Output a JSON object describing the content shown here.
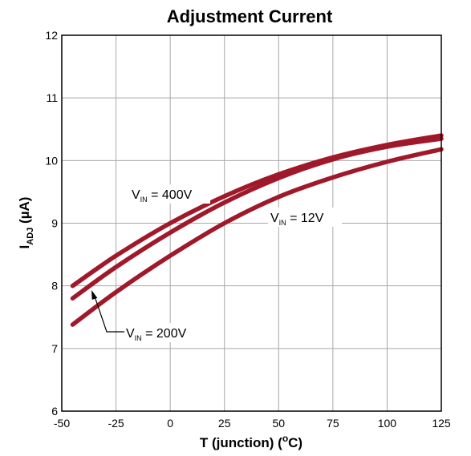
{
  "chart_data": {
    "type": "line",
    "title": "Adjustment Current",
    "xlabel": {
      "main": "T (junction) (",
      "sup": "o",
      "end": "C)"
    },
    "ylabel": {
      "main": "I",
      "sub": "ADJ",
      "end": " (µA)"
    },
    "xlim": [
      -50,
      125
    ],
    "ylim": [
      6,
      12
    ],
    "xticks": [
      -50,
      -25,
      0,
      25,
      50,
      75,
      100,
      125
    ],
    "yticks": [
      6,
      7,
      8,
      9,
      10,
      11,
      12
    ],
    "grid": true,
    "line_color": "#a0192a",
    "series": [
      {
        "name": "V_IN = 400V",
        "x": [
          -45,
          -25,
          0,
          25,
          50,
          75,
          100,
          125
        ],
        "y": [
          8.0,
          8.48,
          9.0,
          9.43,
          9.78,
          10.05,
          10.25,
          10.4
        ]
      },
      {
        "name": "V_IN = 200V",
        "x": [
          -45,
          -25,
          0,
          25,
          50,
          75,
          100,
          125
        ],
        "y": [
          7.8,
          8.3,
          8.85,
          9.33,
          9.72,
          10.02,
          10.22,
          10.35
        ]
      },
      {
        "name": "V_IN = 12V",
        "x": [
          -45,
          -25,
          0,
          25,
          50,
          75,
          100,
          125
        ],
        "y": [
          7.38,
          7.9,
          8.48,
          9.0,
          9.42,
          9.73,
          9.98,
          10.18
        ]
      }
    ],
    "annotations": [
      {
        "main": "V",
        "sub": "IN",
        "end": " = 400V"
      },
      {
        "main": "V",
        "sub": "IN",
        "end": " = 12V"
      },
      {
        "main": "V",
        "sub": "IN",
        "end": " = 200V"
      }
    ]
  }
}
